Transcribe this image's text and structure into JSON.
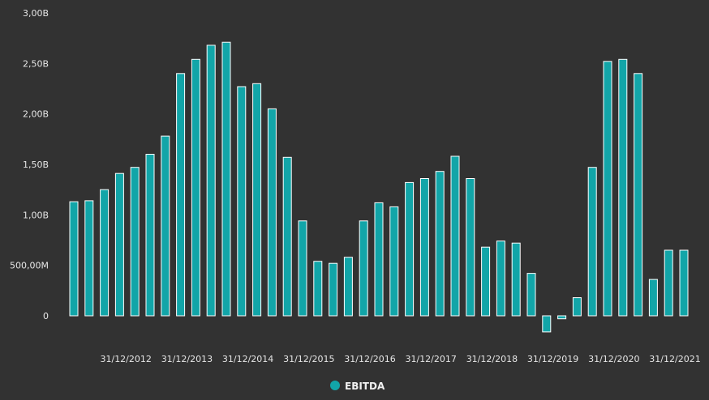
{
  "chart_data": {
    "type": "bar",
    "title": "",
    "xlabel": "",
    "ylabel": "",
    "ylim": [
      0,
      3000000000
    ],
    "y_ticks": [
      {
        "value": 0,
        "label": "0"
      },
      {
        "value": 500000000,
        "label": "500,00M"
      },
      {
        "value": 1000000000,
        "label": "1,00B"
      },
      {
        "value": 1500000000,
        "label": "1,50B"
      },
      {
        "value": 2000000000,
        "label": "2,00B"
      },
      {
        "value": 2500000000,
        "label": "2,50B"
      },
      {
        "value": 3000000000,
        "label": "3,00B"
      }
    ],
    "x_tick_labels": [
      {
        "label": "31/12/2012",
        "index": 4
      },
      {
        "label": "31/12/2013",
        "index": 8
      },
      {
        "label": "31/12/2014",
        "index": 12
      },
      {
        "label": "31/12/2015",
        "index": 16
      },
      {
        "label": "31/12/2016",
        "index": 20
      },
      {
        "label": "31/12/2017",
        "index": 24
      },
      {
        "label": "31/12/2018",
        "index": 28
      },
      {
        "label": "31/12/2019",
        "index": 32
      },
      {
        "label": "31/12/2020",
        "index": 36
      },
      {
        "label": "31/12/2021",
        "index": 40
      }
    ],
    "grid": false,
    "legend_position": "bottom-center",
    "series": [
      {
        "name": "EBITDA",
        "color": "#12A5A8",
        "values": [
          1130000000,
          1140000000,
          1250000000,
          1410000000,
          1470000000,
          1600000000,
          1780000000,
          2400000000,
          2540000000,
          2680000000,
          2710000000,
          2270000000,
          2300000000,
          2050000000,
          1570000000,
          940000000,
          540000000,
          520000000,
          580000000,
          940000000,
          1120000000,
          1080000000,
          1320000000,
          1360000000,
          1430000000,
          1580000000,
          1360000000,
          680000000,
          740000000,
          720000000,
          420000000,
          -160000000,
          -30000000,
          180000000,
          1470000000,
          2520000000,
          2540000000,
          2400000000,
          360000000,
          650000000,
          650000000
        ]
      }
    ]
  }
}
